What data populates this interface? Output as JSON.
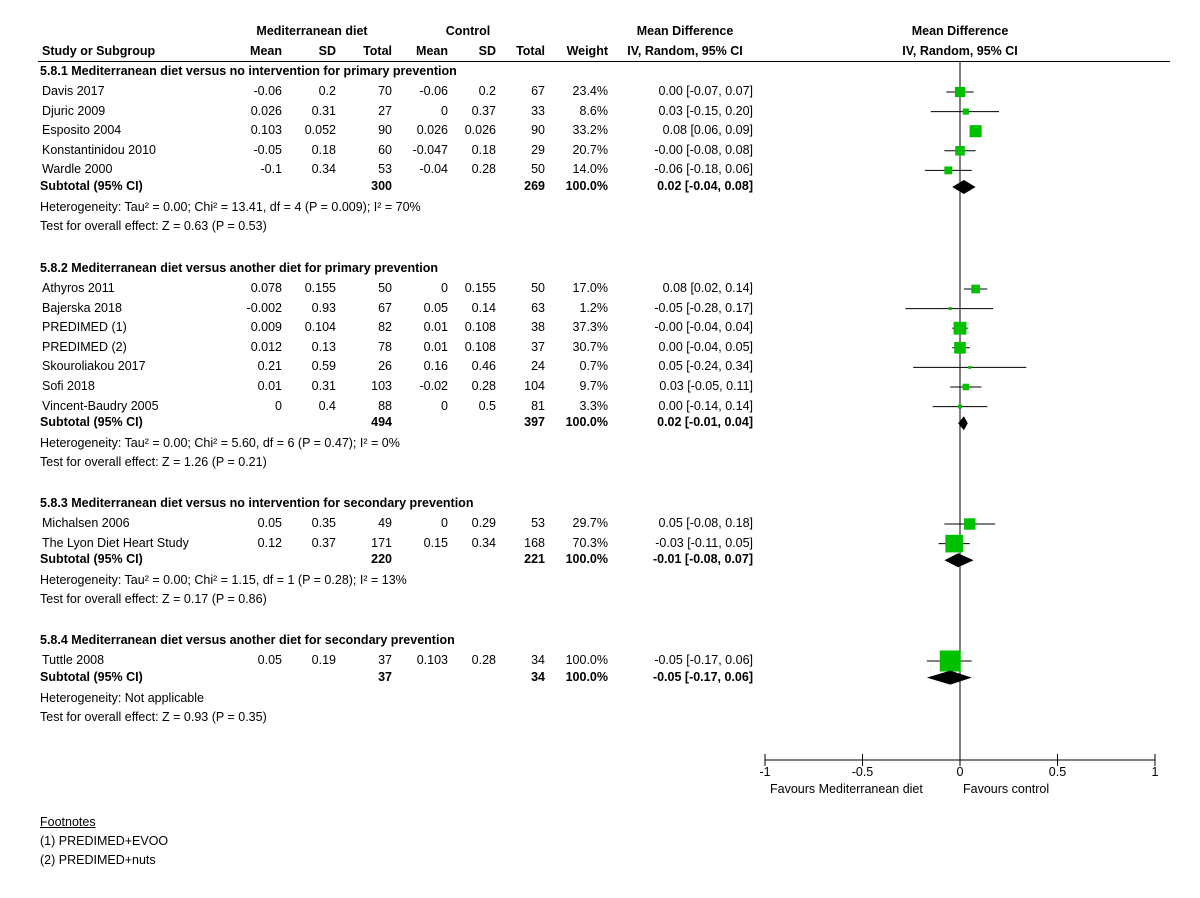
{
  "header": {
    "group1": "Mediterranean diet",
    "group2": "Control",
    "md_title": "Mean Difference",
    "md_method": "IV, Random, 95% CI",
    "plot_title": "Mean Difference",
    "plot_method": "IV, Random, 95% CI",
    "cols": [
      "Study or Subgroup",
      "Mean",
      "SD",
      "Total",
      "Mean",
      "SD",
      "Total",
      "Weight",
      "IV, Random, 95% CI"
    ]
  },
  "sections": [
    {
      "title": "5.8.1 Mediterranean diet versus no intervention for primary prevention",
      "studies": [
        {
          "name": "Davis 2017",
          "m1": "-0.06",
          "sd1": "0.2",
          "n1": "70",
          "m2": "-0.06",
          "sd2": "0.2",
          "n2": "67",
          "weight": "23.4%",
          "ci": "0.00 [-0.07, 0.07]"
        },
        {
          "name": "Djuric 2009",
          "m1": "0.026",
          "sd1": "0.31",
          "n1": "27",
          "m2": "0",
          "sd2": "0.37",
          "n2": "33",
          "weight": "8.6%",
          "ci": "0.03 [-0.15, 0.20]"
        },
        {
          "name": "Esposito 2004",
          "m1": "0.103",
          "sd1": "0.052",
          "n1": "90",
          "m2": "0.026",
          "sd2": "0.026",
          "n2": "90",
          "weight": "33.2%",
          "ci": "0.08 [0.06, 0.09]"
        },
        {
          "name": "Konstantinidou 2010",
          "m1": "-0.05",
          "sd1": "0.18",
          "n1": "60",
          "m2": "-0.047",
          "sd2": "0.18",
          "n2": "29",
          "weight": "20.7%",
          "ci": "-0.00 [-0.08, 0.08]"
        },
        {
          "name": "Wardle 2000",
          "m1": "-0.1",
          "sd1": "0.34",
          "n1": "53",
          "m2": "-0.04",
          "sd2": "0.28",
          "n2": "50",
          "weight": "14.0%",
          "ci": "-0.06 [-0.18, 0.06]"
        }
      ],
      "subtotal": {
        "label": "Subtotal (95% CI)",
        "n1": "300",
        "n2": "269",
        "weight": "100.0%",
        "ci": "0.02 [-0.04, 0.08]"
      },
      "heterogeneity": "Heterogeneity: Tau² = 0.00; Chi² = 13.41, df = 4 (P = 0.009); I² = 70%",
      "overall": "Test for overall effect: Z = 0.63 (P = 0.53)"
    },
    {
      "title": "5.8.2 Mediterranean diet versus another diet for primary prevention",
      "studies": [
        {
          "name": "Athyros 2011",
          "m1": "0.078",
          "sd1": "0.155",
          "n1": "50",
          "m2": "0",
          "sd2": "0.155",
          "n2": "50",
          "weight": "17.0%",
          "ci": "0.08 [0.02, 0.14]"
        },
        {
          "name": "Bajerska 2018",
          "m1": "-0.002",
          "sd1": "0.93",
          "n1": "67",
          "m2": "0.05",
          "sd2": "0.14",
          "n2": "63",
          "weight": "1.2%",
          "ci": "-0.05 [-0.28, 0.17]"
        },
        {
          "name": "PREDIMED (1)",
          "m1": "0.009",
          "sd1": "0.104",
          "n1": "82",
          "m2": "0.01",
          "sd2": "0.108",
          "n2": "38",
          "weight": "37.3%",
          "ci": "-0.00 [-0.04, 0.04]"
        },
        {
          "name": "PREDIMED (2)",
          "m1": "0.012",
          "sd1": "0.13",
          "n1": "78",
          "m2": "0.01",
          "sd2": "0.108",
          "n2": "37",
          "weight": "30.7%",
          "ci": "0.00 [-0.04, 0.05]"
        },
        {
          "name": "Skouroliakou 2017",
          "m1": "0.21",
          "sd1": "0.59",
          "n1": "26",
          "m2": "0.16",
          "sd2": "0.46",
          "n2": "24",
          "weight": "0.7%",
          "ci": "0.05 [-0.24, 0.34]"
        },
        {
          "name": "Sofi 2018",
          "m1": "0.01",
          "sd1": "0.31",
          "n1": "103",
          "m2": "-0.02",
          "sd2": "0.28",
          "n2": "104",
          "weight": "9.7%",
          "ci": "0.03 [-0.05, 0.11]"
        },
        {
          "name": "Vincent-Baudry 2005",
          "m1": "0",
          "sd1": "0.4",
          "n1": "88",
          "m2": "0",
          "sd2": "0.5",
          "n2": "81",
          "weight": "3.3%",
          "ci": "0.00 [-0.14, 0.14]"
        }
      ],
      "subtotal": {
        "label": "Subtotal (95% CI)",
        "n1": "494",
        "n2": "397",
        "weight": "100.0%",
        "ci": "0.02 [-0.01, 0.04]"
      },
      "heterogeneity": "Heterogeneity: Tau² = 0.00; Chi² = 5.60, df = 6 (P = 0.47); I² = 0%",
      "overall": "Test for overall effect: Z = 1.26 (P = 0.21)"
    },
    {
      "title": "5.8.3 Mediterranean diet versus no intervention for secondary prevention",
      "studies": [
        {
          "name": "Michalsen 2006",
          "m1": "0.05",
          "sd1": "0.35",
          "n1": "49",
          "m2": "0",
          "sd2": "0.29",
          "n2": "53",
          "weight": "29.7%",
          "ci": "0.05 [-0.08, 0.18]"
        },
        {
          "name": "The Lyon Diet Heart Study",
          "m1": "0.12",
          "sd1": "0.37",
          "n1": "171",
          "m2": "0.15",
          "sd2": "0.34",
          "n2": "168",
          "weight": "70.3%",
          "ci": "-0.03 [-0.11, 0.05]"
        }
      ],
      "subtotal": {
        "label": "Subtotal (95% CI)",
        "n1": "220",
        "n2": "221",
        "weight": "100.0%",
        "ci": "-0.01 [-0.08, 0.07]"
      },
      "heterogeneity": "Heterogeneity: Tau² = 0.00; Chi² = 1.15, df = 1 (P = 0.28); I² = 13%",
      "overall": "Test for overall effect: Z = 0.17 (P = 0.86)"
    },
    {
      "title": "5.8.4 Mediterranean diet versus another diet for secondary prevention",
      "studies": [
        {
          "name": "Tuttle 2008",
          "m1": "0.05",
          "sd1": "0.19",
          "n1": "37",
          "m2": "0.103",
          "sd2": "0.28",
          "n2": "34",
          "weight": "100.0%",
          "ci": "-0.05 [-0.17, 0.06]"
        }
      ],
      "subtotal": {
        "label": "Subtotal (95% CI)",
        "n1": "37",
        "n2": "34",
        "weight": "100.0%",
        "ci": "-0.05 [-0.17, 0.06]"
      },
      "heterogeneity": "Heterogeneity: Not applicable",
      "overall": "Test for overall effect: Z = 0.93 (P = 0.35)"
    }
  ],
  "axis": {
    "ticks": [
      "-1",
      "-0.5",
      "0",
      "0.5",
      "1"
    ],
    "favours_left": "Favours Mediterranean diet",
    "favours_right": "Favours control"
  },
  "footnotes": {
    "title": "Footnotes",
    "items": [
      "(1) PREDIMED+EVOO",
      "(2) PREDIMED+nuts"
    ]
  },
  "colors": {
    "marker": "#00c000",
    "diamond": "#000000",
    "line": "#000000"
  },
  "chart_data": {
    "type": "forest",
    "title": "Mean Difference",
    "xlabel": "IV, Random, 95% CI",
    "xlim": [
      -1,
      1
    ],
    "ticks": [
      -1,
      -0.5,
      0,
      0.5,
      1
    ],
    "sections": [
      {
        "studies": [
          {
            "md": 0.0,
            "lo": -0.07,
            "hi": 0.07,
            "weight": 23.4
          },
          {
            "md": 0.03,
            "lo": -0.15,
            "hi": 0.2,
            "weight": 8.6
          },
          {
            "md": 0.08,
            "lo": 0.06,
            "hi": 0.09,
            "weight": 33.2
          },
          {
            "md": 0.0,
            "lo": -0.08,
            "hi": 0.08,
            "weight": 20.7
          },
          {
            "md": -0.06,
            "lo": -0.18,
            "hi": 0.06,
            "weight": 14.0
          }
        ],
        "subtotal": {
          "md": 0.02,
          "lo": -0.04,
          "hi": 0.08
        }
      },
      {
        "studies": [
          {
            "md": 0.08,
            "lo": 0.02,
            "hi": 0.14,
            "weight": 17.0
          },
          {
            "md": -0.05,
            "lo": -0.28,
            "hi": 0.17,
            "weight": 1.2
          },
          {
            "md": 0.0,
            "lo": -0.04,
            "hi": 0.04,
            "weight": 37.3
          },
          {
            "md": 0.0,
            "lo": -0.04,
            "hi": 0.05,
            "weight": 30.7
          },
          {
            "md": 0.05,
            "lo": -0.24,
            "hi": 0.34,
            "weight": 0.7
          },
          {
            "md": 0.03,
            "lo": -0.05,
            "hi": 0.11,
            "weight": 9.7
          },
          {
            "md": 0.0,
            "lo": -0.14,
            "hi": 0.14,
            "weight": 3.3
          }
        ],
        "subtotal": {
          "md": 0.02,
          "lo": -0.01,
          "hi": 0.04
        }
      },
      {
        "studies": [
          {
            "md": 0.05,
            "lo": -0.08,
            "hi": 0.18,
            "weight": 29.7
          },
          {
            "md": -0.03,
            "lo": -0.11,
            "hi": 0.05,
            "weight": 70.3
          }
        ],
        "subtotal": {
          "md": -0.01,
          "lo": -0.08,
          "hi": 0.07
        }
      },
      {
        "studies": [
          {
            "md": -0.05,
            "lo": -0.17,
            "hi": 0.06,
            "weight": 100.0
          }
        ],
        "subtotal": {
          "md": -0.05,
          "lo": -0.17,
          "hi": 0.06
        }
      }
    ]
  }
}
